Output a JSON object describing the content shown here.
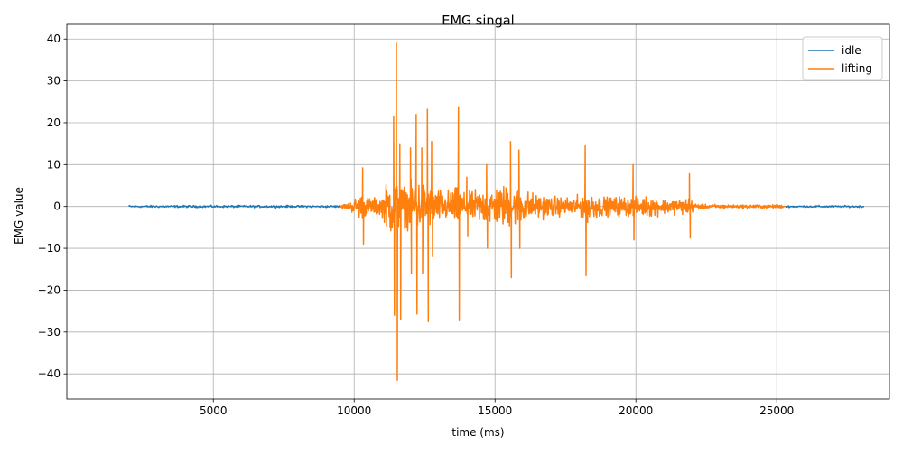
{
  "chart_data": {
    "type": "line",
    "title": "EMG singal",
    "xlabel": "time (ms)",
    "ylabel": "EMG value",
    "xlim": [
      -200,
      29000
    ],
    "ylim": [
      -46,
      43.5
    ],
    "xticks": [
      5000,
      10000,
      15000,
      20000,
      25000
    ],
    "yticks": [
      -40,
      -30,
      -20,
      -10,
      0,
      10,
      20,
      30,
      40
    ],
    "grid": true,
    "legend_position": "top-right",
    "series": [
      {
        "name": "idle",
        "color": "#1f77b4",
        "segments": [
          {
            "x0": 2000,
            "x1": 9500,
            "step": 20,
            "amp": 0.35
          },
          {
            "x0": 25300,
            "x1": 28100,
            "step": 20,
            "amp": 0.3
          }
        ]
      },
      {
        "name": "lifting",
        "color": "#ff7f0e",
        "envelope": {
          "x": [
            9500,
            9800,
            10000,
            10200,
            10500,
            10800,
            11000,
            11200,
            11400,
            11600,
            11800,
            12000,
            12300,
            12600,
            12900,
            13200,
            13500,
            13700,
            14000,
            14300,
            14600,
            15000,
            15300,
            15600,
            15900,
            16200,
            16500,
            17000,
            17500,
            18000,
            18300,
            18600,
            19000,
            19500,
            20000,
            20500,
            21000,
            21500,
            21900,
            22100,
            22500,
            23000,
            23500,
            24000,
            24500,
            25000,
            25300
          ],
          "amp": [
            0.5,
            1.2,
            2.5,
            4.5,
            3.0,
            2.8,
            3.5,
            9.0,
            10.0,
            8.0,
            6.5,
            7.5,
            9.0,
            7.5,
            6.0,
            5.0,
            6.0,
            6.0,
            4.0,
            5.5,
            6.0,
            6.5,
            7.0,
            7.0,
            6.0,
            5.0,
            4.0,
            3.5,
            3.0,
            3.5,
            5.0,
            4.0,
            3.0,
            3.5,
            3.0,
            3.5,
            2.5,
            2.5,
            3.0,
            1.0,
            0.7,
            0.7,
            0.5,
            0.6,
            0.6,
            0.6,
            0.5
          ]
        },
        "spikes": [
          {
            "x": 10300,
            "y": 9.2
          },
          {
            "x": 10330,
            "y": -9.0
          },
          {
            "x": 11400,
            "y": 21.5
          },
          {
            "x": 11430,
            "y": -26.0
          },
          {
            "x": 11500,
            "y": 39.0
          },
          {
            "x": 11530,
            "y": -41.5
          },
          {
            "x": 11620,
            "y": 15.0
          },
          {
            "x": 11650,
            "y": -27.0
          },
          {
            "x": 12000,
            "y": 14.0
          },
          {
            "x": 12030,
            "y": -16.0
          },
          {
            "x": 12200,
            "y": 22.0
          },
          {
            "x": 12230,
            "y": -25.7
          },
          {
            "x": 12400,
            "y": 14.0
          },
          {
            "x": 12430,
            "y": -16.0
          },
          {
            "x": 12600,
            "y": 23.2
          },
          {
            "x": 12630,
            "y": -27.5
          },
          {
            "x": 12750,
            "y": 15.5
          },
          {
            "x": 12780,
            "y": -12.0
          },
          {
            "x": 13700,
            "y": 23.8
          },
          {
            "x": 13730,
            "y": -27.3
          },
          {
            "x": 14000,
            "y": 7.0
          },
          {
            "x": 14030,
            "y": -7.0
          },
          {
            "x": 14700,
            "y": 10.0
          },
          {
            "x": 14730,
            "y": -10.0
          },
          {
            "x": 15550,
            "y": 15.5
          },
          {
            "x": 15580,
            "y": -17.0
          },
          {
            "x": 15850,
            "y": 13.5
          },
          {
            "x": 15880,
            "y": -10.0
          },
          {
            "x": 18200,
            "y": 14.5
          },
          {
            "x": 18230,
            "y": -16.5
          },
          {
            "x": 19900,
            "y": 10.0
          },
          {
            "x": 19930,
            "y": -8.0
          },
          {
            "x": 21900,
            "y": 7.8
          },
          {
            "x": 21930,
            "y": -7.5
          }
        ]
      }
    ]
  }
}
